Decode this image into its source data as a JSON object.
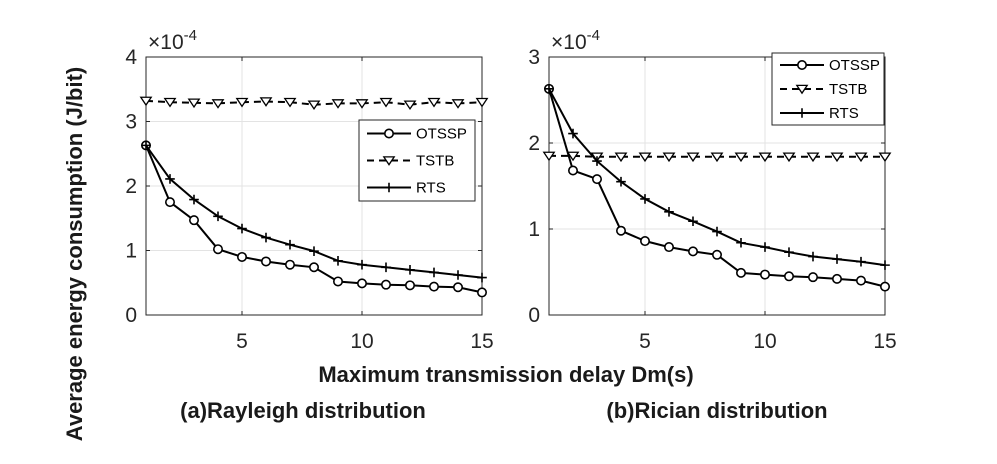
{
  "figure": {
    "ylabel": "Average energy consumption (J/bit)",
    "xlabel": "Maximum transmission delay Dm(s)"
  },
  "chart_data": [
    {
      "type": "line",
      "caption": "(a)Rayleigh distribution",
      "exponent_label": "×10",
      "exponent_power": "-4",
      "xlim": [
        1,
        15
      ],
      "ylim": [
        0,
        4
      ],
      "xticks": [
        5,
        10,
        15
      ],
      "yticks": [
        0,
        1,
        2,
        3,
        4
      ],
      "grid": true,
      "legend_position": "right",
      "x": [
        1,
        2,
        3,
        4,
        5,
        6,
        7,
        8,
        9,
        10,
        11,
        12,
        13,
        14,
        15
      ],
      "series": [
        {
          "name": "OTSSP",
          "marker": "circle",
          "dash": "solid",
          "values": [
            2.63,
            1.75,
            1.47,
            1.02,
            0.9,
            0.83,
            0.78,
            0.74,
            0.52,
            0.49,
            0.47,
            0.46,
            0.44,
            0.43,
            0.35
          ]
        },
        {
          "name": "TSTB",
          "marker": "triangle-down",
          "dash": "dashed",
          "values": [
            3.32,
            3.3,
            3.29,
            3.28,
            3.3,
            3.31,
            3.3,
            3.26,
            3.28,
            3.28,
            3.3,
            3.26,
            3.3,
            3.28,
            3.3
          ]
        },
        {
          "name": "RTS",
          "marker": "plus",
          "dash": "solid",
          "values": [
            2.63,
            2.11,
            1.79,
            1.53,
            1.34,
            1.2,
            1.09,
            0.99,
            0.84,
            0.78,
            0.74,
            0.7,
            0.66,
            0.62,
            0.58
          ]
        }
      ]
    },
    {
      "type": "line",
      "caption": "(b)Rician distribution",
      "exponent_label": "×10",
      "exponent_power": "-4",
      "xlim": [
        1,
        15
      ],
      "ylim": [
        0,
        3
      ],
      "xticks": [
        5,
        10,
        15
      ],
      "yticks": [
        0,
        1,
        2,
        3
      ],
      "grid": true,
      "legend_position": "top-right",
      "x": [
        1,
        2,
        3,
        4,
        5,
        6,
        7,
        8,
        9,
        10,
        11,
        12,
        13,
        14,
        15
      ],
      "series": [
        {
          "name": "OTSSP",
          "marker": "circle",
          "dash": "solid",
          "values": [
            2.63,
            1.68,
            1.58,
            0.98,
            0.86,
            0.79,
            0.74,
            0.7,
            0.49,
            0.47,
            0.45,
            0.44,
            0.42,
            0.4,
            0.33
          ]
        },
        {
          "name": "TSTB",
          "marker": "triangle-down",
          "dash": "dashed",
          "values": [
            1.85,
            1.85,
            1.84,
            1.84,
            1.84,
            1.84,
            1.84,
            1.84,
            1.84,
            1.84,
            1.84,
            1.84,
            1.84,
            1.84,
            1.84
          ]
        },
        {
          "name": "RTS",
          "marker": "plus",
          "dash": "solid",
          "values": [
            2.63,
            2.11,
            1.79,
            1.55,
            1.35,
            1.2,
            1.09,
            0.97,
            0.84,
            0.79,
            0.73,
            0.68,
            0.65,
            0.62,
            0.58
          ]
        }
      ]
    }
  ]
}
